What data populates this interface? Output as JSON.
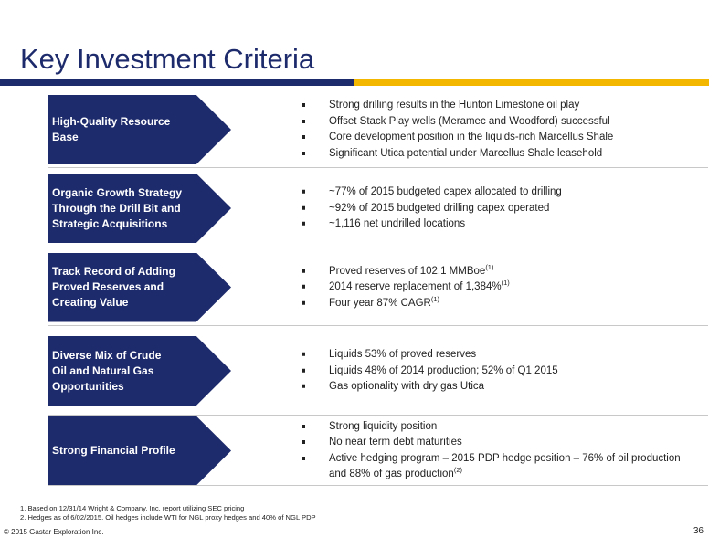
{
  "title": "Key Investment Criteria",
  "rows": [
    {
      "label": "High-Quality Resource\nBase",
      "bullets": [
        {
          "text": "Strong drilling results in the Hunton Limestone oil play",
          "sup": ""
        },
        {
          "text": "Offset Stack Play wells (Meramec and Woodford) successful",
          "sup": ""
        },
        {
          "text": "Core development position in the liquids-rich Marcellus Shale",
          "sup": ""
        },
        {
          "text": "Significant Utica potential under Marcellus Shale leasehold",
          "sup": ""
        }
      ]
    },
    {
      "label": "Organic Growth Strategy\nThrough the Drill Bit and\nStrategic Acquisitions",
      "bullets": [
        {
          "text": "~77% of 2015 budgeted capex allocated to drilling",
          "sup": ""
        },
        {
          "text": "~92% of 2015 budgeted drilling capex operated",
          "sup": ""
        },
        {
          "text": "~1,116 net undrilled locations",
          "sup": ""
        }
      ]
    },
    {
      "label": "Track Record of Adding\nProved Reserves and\nCreating Value",
      "bullets": [
        {
          "text": "Proved reserves of 102.1 MMBoe",
          "sup": "(1)"
        },
        {
          "text": "2014 reserve replacement of 1,384%",
          "sup": "(1)"
        },
        {
          "text": "Four year 87% CAGR",
          "sup": "(1)"
        }
      ]
    },
    {
      "label": "Diverse Mix of Crude\nOil and Natural Gas\nOpportunities",
      "bullets": [
        {
          "text": "Liquids 53% of proved reserves",
          "sup": ""
        },
        {
          "text": "Liquids 48% of 2014 production; 52% of Q1 2015",
          "sup": ""
        },
        {
          "text": "Gas optionality with dry gas Utica",
          "sup": ""
        }
      ]
    },
    {
      "label": "Strong Financial Profile",
      "bullets": [
        {
          "text": "Strong liquidity position",
          "sup": ""
        },
        {
          "text": "No near term debt maturities",
          "sup": ""
        },
        {
          "text": "Active hedging program – 2015 PDP hedge position – 76% of oil production and 88% of gas production",
          "sup": "(2)"
        }
      ]
    }
  ],
  "footnotes": [
    "1.   Based on 12/31/14 Wright & Company, Inc. report utilizing SEC pricing",
    "2.   Hedges as of 6/02/2015. Oil hedges include WTI for NGL proxy hedges and 40% of NGL PDP"
  ],
  "copyright": "© 2015 Gastar Exploration Inc.",
  "page_number": "36"
}
